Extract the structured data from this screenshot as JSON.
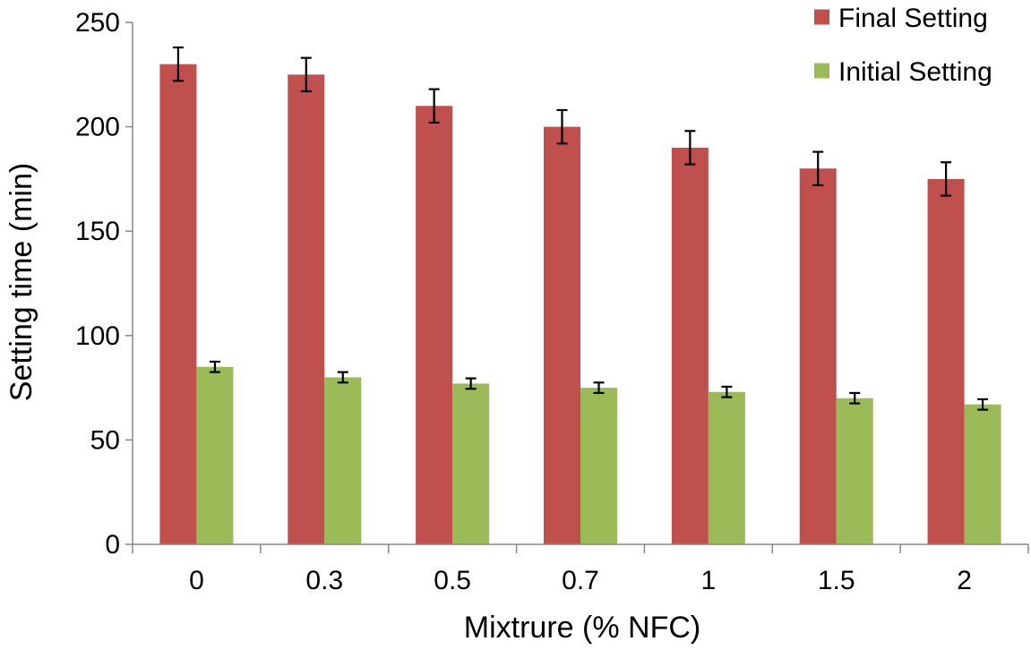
{
  "chart_data": {
    "type": "bar",
    "title": "",
    "xlabel": "Mixtrure (% NFC)",
    "ylabel": "Setting time (min)",
    "categories": [
      "0",
      "0.3",
      "0.5",
      "0.7",
      "1",
      "1.5",
      "2"
    ],
    "ylim": [
      0,
      250
    ],
    "yticks": [
      0,
      50,
      100,
      150,
      200,
      250
    ],
    "grid": false,
    "legend_position": "top-right",
    "series": [
      {
        "name": "Final Setting",
        "color": "#C0504D",
        "values": [
          230,
          225,
          210,
          200,
          190,
          180,
          175
        ],
        "errors": [
          8,
          8,
          8,
          8,
          8,
          8,
          8
        ]
      },
      {
        "name": "Initial Setting",
        "color": "#9BBB59",
        "values": [
          85,
          80,
          77,
          75,
          73,
          70,
          67
        ],
        "errors": [
          2.5,
          2.5,
          2.5,
          2.5,
          2.5,
          2.5,
          2.5
        ]
      }
    ]
  }
}
